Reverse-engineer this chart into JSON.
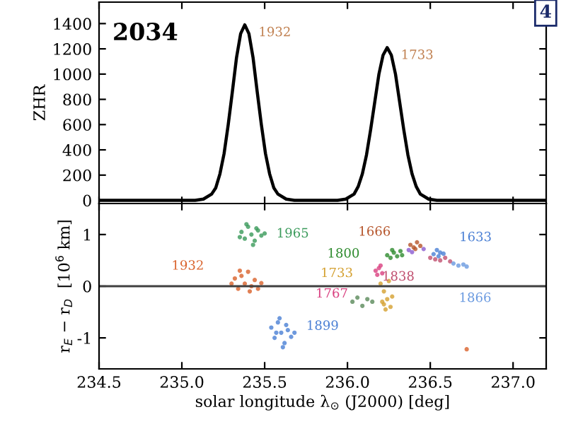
{
  "chart_data": [
    {
      "type": "line",
      "title": "2034",
      "ylabel": "ZHR",
      "xlim": [
        234.5,
        237.2
      ],
      "ylim": [
        -25,
        1570
      ],
      "xticks": [
        234.5,
        235,
        235.5,
        236,
        236.5,
        237
      ],
      "yticks": [
        0,
        200,
        400,
        600,
        800,
        1000,
        1200,
        1400
      ],
      "tick_labels": "y",
      "grid": false,
      "annotations": [
        {
          "text": "1932",
          "x": 235.38,
          "y": 1390
        },
        {
          "text": "1733",
          "x": 236.24,
          "y": 1210
        },
        "4"
      ],
      "series": [
        {
          "color": "#000000",
          "x": [
            234.5,
            235.0,
            235.08,
            235.13,
            235.18,
            235.205,
            235.23,
            235.255,
            235.28,
            235.305,
            235.33,
            235.355,
            235.38,
            235.405,
            235.43,
            235.455,
            235.48,
            235.505,
            235.53,
            235.555,
            235.58,
            235.63,
            235.68,
            235.94,
            235.99,
            236.04,
            236.065,
            236.09,
            236.115,
            236.14,
            236.165,
            236.19,
            236.215,
            236.24,
            236.265,
            236.29,
            236.315,
            236.34,
            236.365,
            236.39,
            236.415,
            236.44,
            236.49,
            236.54,
            237.2
          ],
          "values": [
            0,
            0,
            0,
            10,
            50,
            100,
            210,
            370,
            600,
            860,
            1130,
            1320,
            1390,
            1320,
            1130,
            860,
            600,
            370,
            210,
            100,
            50,
            10,
            0,
            0,
            10,
            50,
            110,
            210,
            360,
            560,
            780,
            1000,
            1150,
            1210,
            1150,
            1000,
            780,
            560,
            360,
            210,
            110,
            50,
            10,
            0,
            0
          ]
        }
      ]
    },
    {
      "type": "scatter",
      "xlabel": "solar longitude λ$_{⊙}$ (J2000) [deg]",
      "ylabel": "r$_{E}$ − r$_{D}$  [10$^{6}$ km]",
      "xlim": [
        234.5,
        237.2
      ],
      "ylim": [
        -1.6,
        1.6
      ],
      "xticks": [
        234.5,
        {
          "value": 235,
          "label": "235.0"
        },
        235.5,
        {
          "value": 236,
          "label": "236.0"
        },
        236.5,
        {
          "value": 237,
          "label": "237.0"
        }
      ],
      "yticks": [
        -1,
        0,
        1
      ],
      "grid": false,
      "marker": "circle",
      "ref_lines": [
        {
          "axis": "y",
          "value": 0,
          "color": "#404040"
        }
      ],
      "series": [
        {
          "name": "1965",
          "color": "#3a9a5a",
          "x": [
            235.36,
            235.38,
            235.4,
            235.42,
            235.44,
            235.46,
            235.48,
            235.39,
            235.43,
            235.5,
            235.35,
            235.45
          ],
          "values": [
            1.05,
            0.92,
            1.15,
            1.0,
            0.88,
            1.08,
            0.98,
            1.2,
            0.8,
            1.02,
            0.95,
            1.12
          ]
        },
        {
          "name": "1932",
          "color": "#d9622b",
          "x": [
            235.3,
            235.32,
            235.34,
            235.36,
            235.38,
            235.4,
            235.42,
            235.44,
            235.46,
            235.48,
            235.35,
            235.41
          ],
          "values": [
            0.05,
            0.15,
            -0.05,
            0.2,
            0.05,
            0.28,
            0.0,
            0.12,
            -0.05,
            0.06,
            0.3,
            -0.1
          ]
        },
        {
          "name": "1899",
          "color": "#4a7fd4",
          "x": [
            235.54,
            235.56,
            235.58,
            235.6,
            235.62,
            235.64,
            235.66,
            235.59,
            235.61,
            235.68,
            235.57,
            235.63
          ],
          "values": [
            -0.8,
            -1.0,
            -0.7,
            -0.9,
            -1.1,
            -0.85,
            -0.98,
            -0.62,
            -1.18,
            -0.9,
            -0.9,
            -0.75
          ]
        },
        {
          "name": "1800",
          "color": "#2e8b2e",
          "x": [
            236.24,
            236.26,
            236.28,
            236.3,
            236.32,
            236.27,
            236.33
          ],
          "values": [
            0.6,
            0.55,
            0.65,
            0.58,
            0.68,
            0.7,
            0.6
          ]
        },
        {
          "name": "1666",
          "color": "#b5542a",
          "x": [
            236.38,
            236.4,
            236.42,
            236.41,
            236.44
          ],
          "values": [
            0.8,
            0.75,
            0.85,
            0.72,
            0.78
          ]
        },
        {
          "color": "#8a5ad0",
          "x": [
            236.37,
            236.39,
            236.46
          ],
          "values": [
            0.7,
            0.66,
            0.72
          ]
        },
        {
          "name": "1633",
          "color": "#4a7fd4",
          "x": [
            236.52,
            236.54,
            236.56,
            236.55,
            236.58
          ],
          "values": [
            0.62,
            0.7,
            0.65,
            0.58,
            0.63
          ]
        },
        {
          "name": "1838",
          "color": "#c05070",
          "x": [
            236.5,
            236.53,
            236.56,
            236.59,
            236.62
          ],
          "values": [
            0.55,
            0.52,
            0.5,
            0.55,
            0.48
          ]
        },
        {
          "name": "1866",
          "color": "#6a9ae0",
          "x": [
            236.64,
            236.67,
            236.7,
            236.72
          ],
          "values": [
            0.44,
            0.4,
            0.42,
            0.38
          ]
        },
        {
          "name": "1767",
          "color": "#d94080",
          "x": [
            236.17,
            236.19,
            236.21,
            236.18,
            236.2
          ],
          "values": [
            0.3,
            0.35,
            0.25,
            0.22,
            0.4
          ]
        },
        {
          "name": "1733",
          "color": "#d4a030",
          "x": [
            236.2,
            236.22,
            236.24,
            236.26,
            236.23,
            236.21,
            236.25,
            236.27,
            236.22
          ],
          "values": [
            0.05,
            -0.1,
            -0.25,
            -0.4,
            -0.45,
            -0.3,
            0.1,
            -0.2,
            -0.35
          ]
        },
        {
          "color": "#5a8a5a",
          "x": [
            236.03,
            236.06,
            236.09,
            236.12,
            236.15
          ],
          "values": [
            -0.3,
            -0.22,
            -0.38,
            -0.25,
            -0.3
          ]
        },
        {
          "color": "#d9622b",
          "x": [
            236.72
          ],
          "values": [
            -1.22
          ]
        }
      ]
    }
  ]
}
